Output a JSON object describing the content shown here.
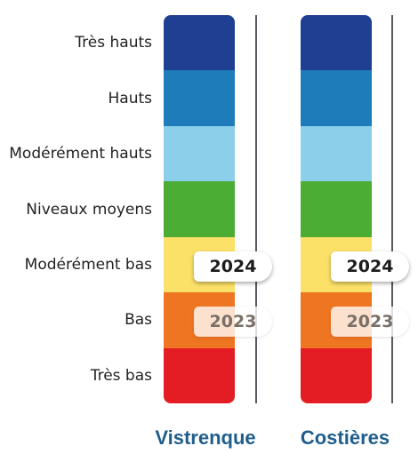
{
  "colors": {
    "tres_hauts": "#1f3f93",
    "hauts": "#1e7cbb",
    "moderement_hauts": "#8ccfea",
    "niveaux_moyens": "#4cad35",
    "moderement_bas": "#fce168",
    "bas": "#ee7522",
    "tres_bas": "#e31d23",
    "column_label": "#1f5e8c",
    "line": "#555a60"
  },
  "chart_data": {
    "type": "table",
    "levels": [
      {
        "key": "tres_hauts",
        "label": "Très hauts"
      },
      {
        "key": "hauts",
        "label": "Hauts"
      },
      {
        "key": "moderement_hauts",
        "label": "Modérément hauts"
      },
      {
        "key": "niveaux_moyens",
        "label": "Niveaux moyens"
      },
      {
        "key": "moderement_bas",
        "label": "Modérément bas"
      },
      {
        "key": "bas",
        "label": "Bas"
      },
      {
        "key": "tres_bas",
        "label": "Très bas"
      }
    ],
    "columns": [
      {
        "name": "Vistrenque",
        "years": [
          {
            "year": "2024",
            "level": "Modérément bas"
          },
          {
            "year": "2023",
            "level": "Bas"
          }
        ]
      },
      {
        "name": "Costières",
        "years": [
          {
            "year": "2024",
            "level": "Modérément bas"
          },
          {
            "year": "2023",
            "level": "Bas"
          }
        ]
      }
    ]
  }
}
